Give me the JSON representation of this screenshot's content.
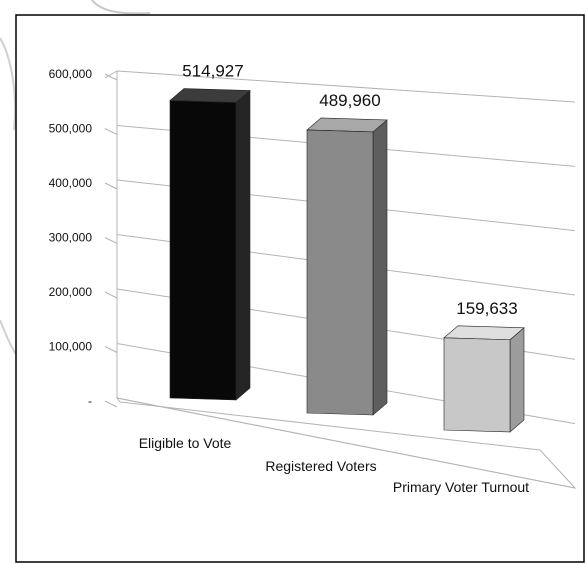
{
  "chart_data": {
    "type": "bar",
    "categories": [
      "Eligible to Vote",
      "Registered Voters",
      "Primary Voter Turnout"
    ],
    "values": [
      514927,
      489960,
      159633
    ],
    "data_labels": [
      "514,927",
      "489,960",
      "159,633"
    ],
    "yticks": [
      "-",
      "100,000",
      "200,000",
      "300,000",
      "400,000",
      "500,000",
      "600,000"
    ],
    "ylim": [
      0,
      600000
    ],
    "grid": true,
    "legend": "none",
    "three_d": true
  },
  "colors": {
    "bar_front": [
      "#080808",
      "#8a8a8a",
      "#c8c8c8"
    ],
    "bar_side": [
      "#252525",
      "#5e5e5e",
      "#9c9c9c"
    ],
    "bar_top": [
      "#3c3c3c",
      "#a8a8a8",
      "#dedede"
    ],
    "grid": "#b4b4b4",
    "frame": "#000000"
  }
}
